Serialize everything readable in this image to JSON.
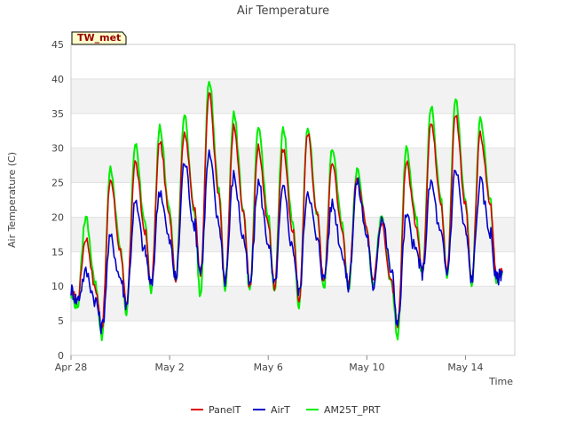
{
  "chart_data": {
    "type": "line",
    "title": "Air Temperature",
    "xlabel": "Time",
    "ylabel": "Air Temperature (C)",
    "station_label": "TW_met",
    "ylim": [
      0,
      45
    ],
    "xlim": [
      "2016-04-28",
      "2016-05-16"
    ],
    "x_ticks": [
      {
        "date": "2016-04-28",
        "label": "Apr 28"
      },
      {
        "date": "2016-05-02",
        "label": "May 2"
      },
      {
        "date": "2016-05-06",
        "label": "May 6"
      },
      {
        "date": "2016-05-10",
        "label": "May 10"
      },
      {
        "date": "2016-05-14",
        "label": "May 14"
      }
    ],
    "y_ticks": [
      0,
      5,
      10,
      15,
      20,
      25,
      30,
      35,
      40,
      45
    ],
    "grid": true,
    "legend_position": "bottom",
    "daily_extremes_note": "approximate daily min/max read from plot",
    "series": [
      {
        "name": "PanelT",
        "color": "#dd0000",
        "daily": [
          {
            "date": "2016-04-28",
            "min": 8.0,
            "max": 17.0
          },
          {
            "date": "2016-04-29",
            "min": 4.0,
            "max": 25.5
          },
          {
            "date": "2016-04-30",
            "min": 7.0,
            "max": 28.0
          },
          {
            "date": "2016-05-01",
            "min": 10.0,
            "max": 31.0
          },
          {
            "date": "2016-05-02",
            "min": 11.0,
            "max": 32.5
          },
          {
            "date": "2016-05-03",
            "min": 12.0,
            "max": 38.0
          },
          {
            "date": "2016-05-04",
            "min": 10.0,
            "max": 33.0
          },
          {
            "date": "2016-05-05",
            "min": 10.0,
            "max": 30.0
          },
          {
            "date": "2016-05-06",
            "min": 10.0,
            "max": 30.0
          },
          {
            "date": "2016-05-07",
            "min": 8.0,
            "max": 32.0
          },
          {
            "date": "2016-05-08",
            "min": 10.5,
            "max": 28.0
          },
          {
            "date": "2016-05-09",
            "min": 10.0,
            "max": 26.0
          },
          {
            "date": "2016-05-10",
            "min": 11.0,
            "max": 19.0
          },
          {
            "date": "2016-05-11",
            "min": 4.0,
            "max": 28.0
          },
          {
            "date": "2016-05-12",
            "min": 12.0,
            "max": 34.0
          },
          {
            "date": "2016-05-13",
            "min": 12.0,
            "max": 35.0
          },
          {
            "date": "2016-05-14",
            "min": 10.5,
            "max": 32.0
          },
          {
            "date": "2016-05-15",
            "min": 12.0,
            "max": 12.0
          }
        ]
      },
      {
        "name": "AirT",
        "color": "#0000cc",
        "daily": [
          {
            "date": "2016-04-28",
            "min": 8.0,
            "max": 12.0
          },
          {
            "date": "2016-04-29",
            "min": 4.0,
            "max": 17.0
          },
          {
            "date": "2016-04-30",
            "min": 7.5,
            "max": 22.0
          },
          {
            "date": "2016-05-01",
            "min": 10.0,
            "max": 24.0
          },
          {
            "date": "2016-05-02",
            "min": 11.0,
            "max": 28.0
          },
          {
            "date": "2016-05-03",
            "min": 12.0,
            "max": 29.0
          },
          {
            "date": "2016-05-04",
            "min": 11.0,
            "max": 26.0
          },
          {
            "date": "2016-05-05",
            "min": 10.0,
            "max": 25.0
          },
          {
            "date": "2016-05-06",
            "min": 10.0,
            "max": 24.0
          },
          {
            "date": "2016-05-07",
            "min": 9.0,
            "max": 24.0
          },
          {
            "date": "2016-05-08",
            "min": 11.0,
            "max": 22.0
          },
          {
            "date": "2016-05-09",
            "min": 10.0,
            "max": 25.0
          },
          {
            "date": "2016-05-10",
            "min": 10.0,
            "max": 20.0
          },
          {
            "date": "2016-05-11",
            "min": 4.5,
            "max": 20.0
          },
          {
            "date": "2016-05-12",
            "min": 12.0,
            "max": 25.0
          },
          {
            "date": "2016-05-13",
            "min": 12.0,
            "max": 27.0
          },
          {
            "date": "2016-05-14",
            "min": 11.0,
            "max": 25.0
          },
          {
            "date": "2016-05-15",
            "min": 11.0,
            "max": 12.0
          }
        ]
      },
      {
        "name": "AM25T_PRT",
        "color": "#00ee00",
        "daily": [
          {
            "date": "2016-04-28",
            "min": 7.0,
            "max": 20.0
          },
          {
            "date": "2016-04-29",
            "min": 2.5,
            "max": 27.0
          },
          {
            "date": "2016-04-30",
            "min": 6.0,
            "max": 30.5
          },
          {
            "date": "2016-05-01",
            "min": 9.5,
            "max": 33.0
          },
          {
            "date": "2016-05-02",
            "min": 10.5,
            "max": 35.0
          },
          {
            "date": "2016-05-03",
            "min": 8.5,
            "max": 40.0
          },
          {
            "date": "2016-05-04",
            "min": 9.5,
            "max": 35.0
          },
          {
            "date": "2016-05-05",
            "min": 9.0,
            "max": 33.0
          },
          {
            "date": "2016-05-06",
            "min": 9.0,
            "max": 33.0
          },
          {
            "date": "2016-05-07",
            "min": 7.0,
            "max": 33.0
          },
          {
            "date": "2016-05-08",
            "min": 9.5,
            "max": 30.0
          },
          {
            "date": "2016-05-09",
            "min": 9.5,
            "max": 27.0
          },
          {
            "date": "2016-05-10",
            "min": 10.0,
            "max": 20.0
          },
          {
            "date": "2016-05-11",
            "min": 2.5,
            "max": 30.0
          },
          {
            "date": "2016-05-12",
            "min": 11.5,
            "max": 36.0
          },
          {
            "date": "2016-05-13",
            "min": 11.5,
            "max": 37.0
          },
          {
            "date": "2016-05-14",
            "min": 10.0,
            "max": 34.0
          },
          {
            "date": "2016-05-15",
            "min": 11.0,
            "max": 12.0
          }
        ]
      }
    ]
  }
}
